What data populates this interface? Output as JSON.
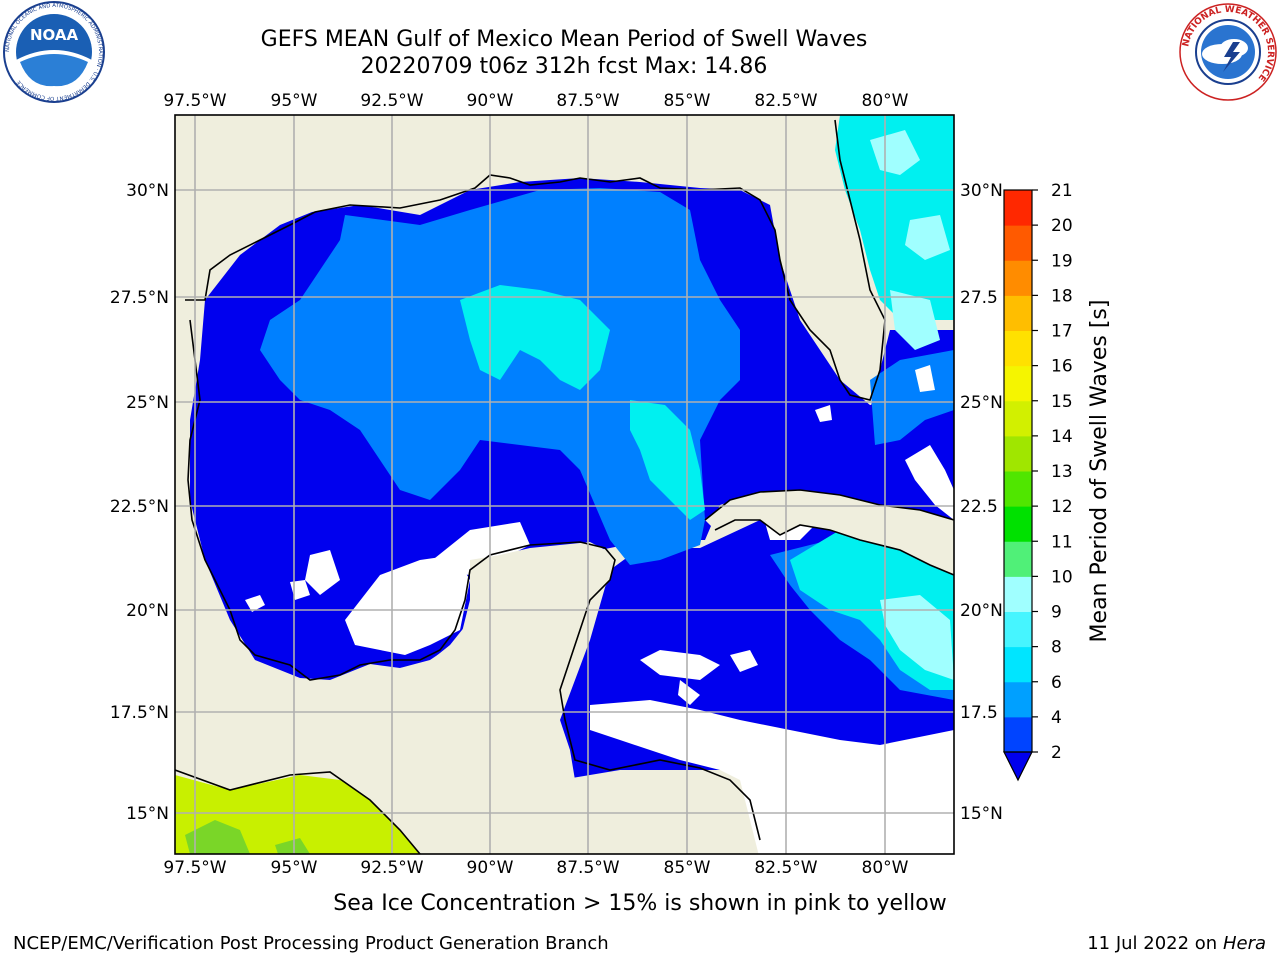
{
  "title": {
    "line1": "GEFS MEAN Gulf of Mexico Mean Period of Swell Waves",
    "line2": "20220709 t06z 312h fcst   Max: 14.86"
  },
  "logos": {
    "left": {
      "name": "noaa-logo",
      "text": "NOAA",
      "ring_text": "NATIONAL OCEANIC AND ATMOSPHERIC ADMINISTRATION · U.S. DEPARTMENT OF COMMERCE"
    },
    "right": {
      "name": "nws-logo",
      "ring_text": "NATIONAL WEATHER SERVICE"
    }
  },
  "map": {
    "lon_labels": [
      "97.5°W",
      "95°W",
      "92.5°W",
      "90°W",
      "87.5°W",
      "85°W",
      "82.5°W",
      "80°W"
    ],
    "lat_labels_left": [
      "30°N",
      "27.5°N",
      "25°N",
      "22.5°N",
      "20°N",
      "17.5°N",
      "15°N"
    ],
    "lat_labels_right": [
      "30°N",
      "27.5",
      "25°N",
      "22.5",
      "20°N",
      "17.5",
      "15°N"
    ],
    "land_color": "#efeedd",
    "grid_color": "#b0b0b0"
  },
  "colorbar": {
    "label": "Mean Period of Swell Waves [s]",
    "ticks": [
      "2",
      "4",
      "6",
      "8",
      "9",
      "10",
      "11",
      "12",
      "13",
      "14",
      "15",
      "16",
      "17",
      "18",
      "19",
      "20",
      "21"
    ],
    "colors": [
      "#0044ff",
      "#00a0ff",
      "#00e5ff",
      "#46f5ff",
      "#a0ffff",
      "#50f078",
      "#00e100",
      "#50e600",
      "#a0e600",
      "#d2f000",
      "#f5f500",
      "#ffe100",
      "#ffbe00",
      "#ff8c00",
      "#ff5a00",
      "#ff2800",
      "#ff0000"
    ],
    "extend_color": "#0000ee"
  },
  "legend_colors": {
    "level_2_4": "#0000ee",
    "level_4_6": "#0080ff",
    "level_6_8": "#00f0f0",
    "level_8_9": "#50f0ff",
    "level_9_10": "#a0ffff",
    "level_13_14": "#c8f000"
  },
  "footer": {
    "note": "Sea Ice Concentration > 15% is shown in pink to yellow",
    "credit_left": "NCEP/EMC/Verification Post Processing Product Generation Branch",
    "credit_date": "11 Jul 2022 on ",
    "credit_host": "Hera"
  }
}
